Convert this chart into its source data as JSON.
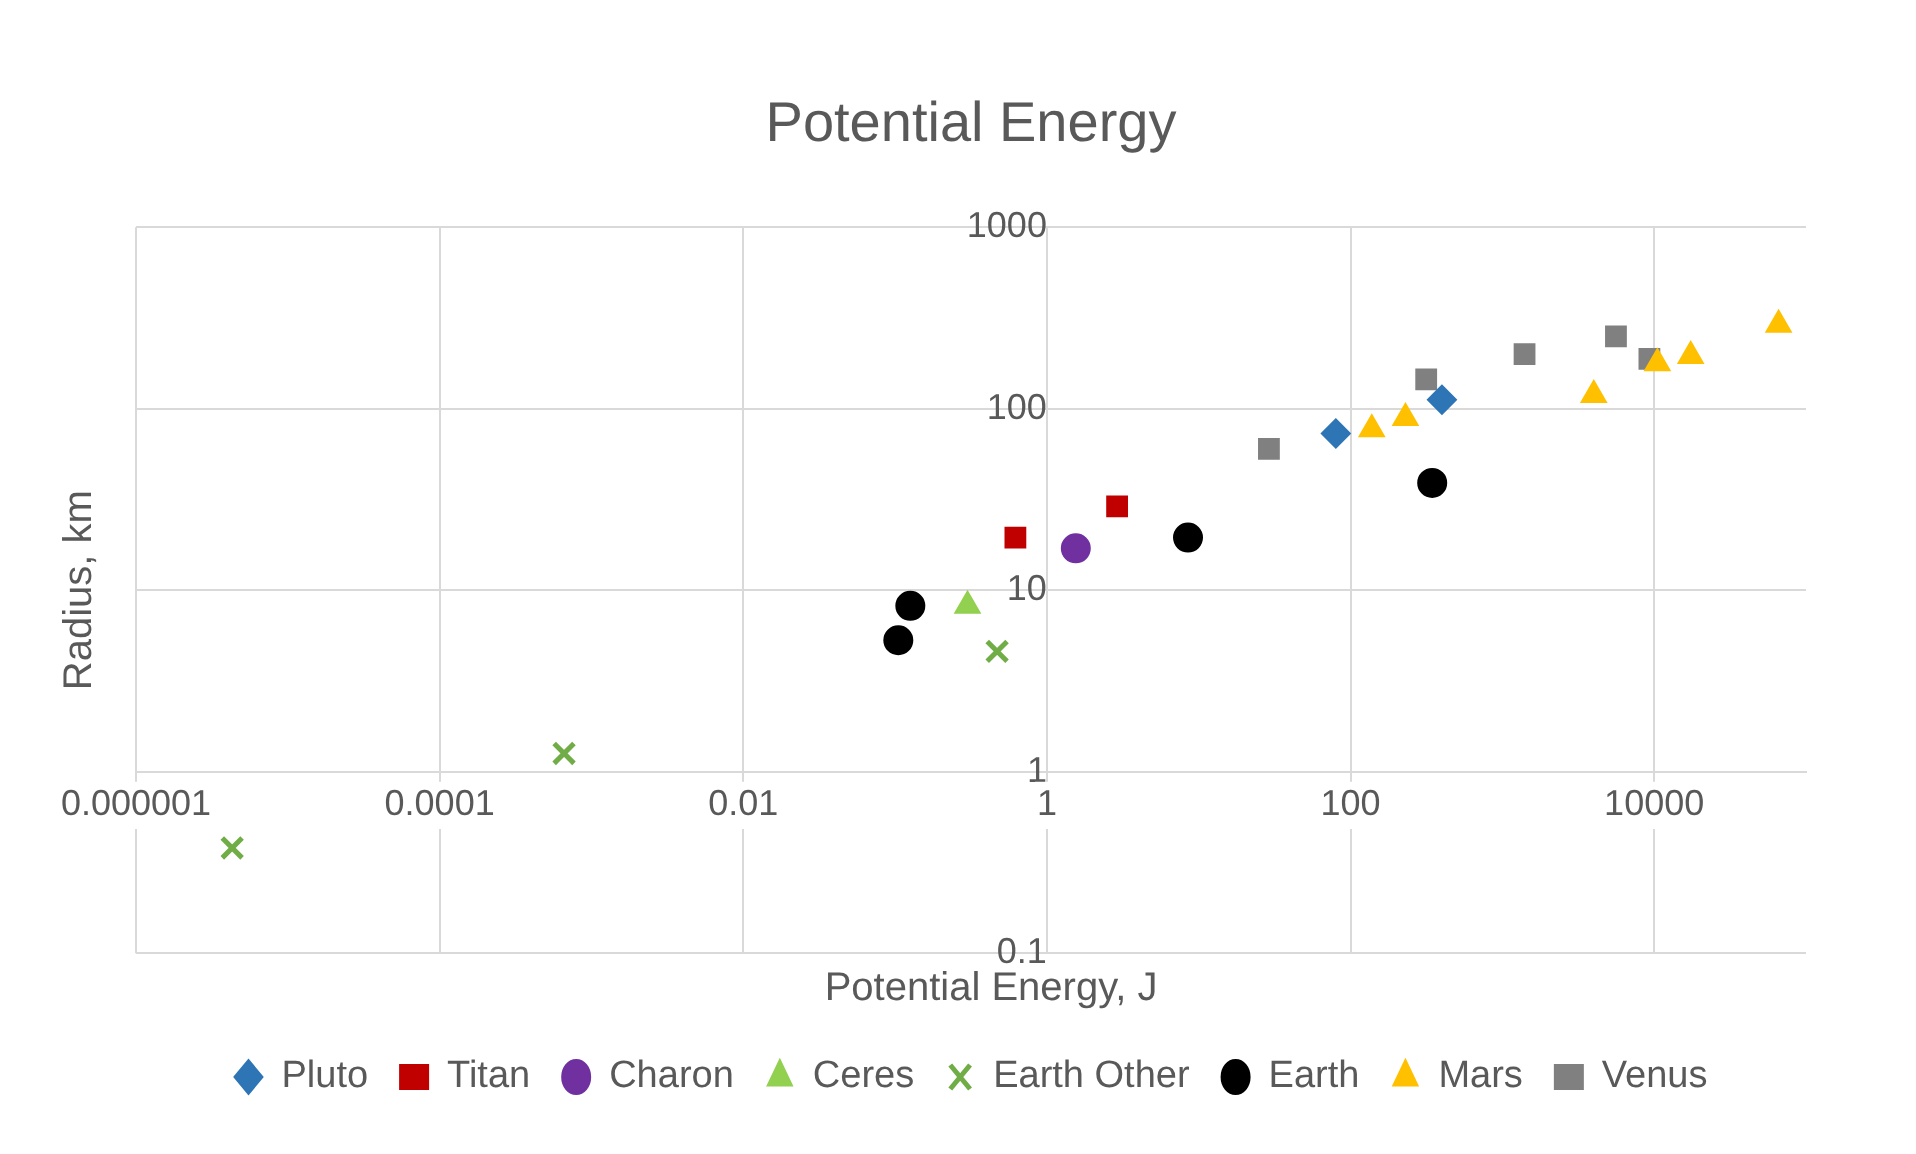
{
  "chart_data": {
    "type": "scatter",
    "title": "Potential Energy",
    "xlabel": "Potential Energy, J",
    "ylabel": "Radius, km",
    "log": "xy",
    "grid": true,
    "legend": "bottom",
    "xlim": [
      1e-06,
      100000
    ],
    "xticks": [
      {
        "value": 1e-06,
        "label": "0.000001"
      },
      0.0001,
      0.01,
      1,
      100,
      10000
    ],
    "ylim": [
      0.1,
      1000
    ],
    "yticks": [
      0.1,
      1,
      10,
      100,
      1000
    ],
    "series": [
      {
        "name": "Pluto",
        "color": "#2e75b6",
        "marker": "diamond",
        "x": [
          80,
          400
        ],
        "values": [
          73,
          112
        ]
      },
      {
        "name": "Titan",
        "color": "#c00000",
        "marker": "square",
        "x": [
          0.62,
          2.9
        ],
        "values": [
          19.5,
          29
        ]
      },
      {
        "name": "Charon",
        "color": "#7030a0",
        "marker": "circle",
        "x": [
          1.55
        ],
        "values": [
          17
        ]
      },
      {
        "name": "Ceres",
        "color": "#92d050",
        "marker": "triangle",
        "x": [
          0.3
        ],
        "values": [
          8.2
        ]
      },
      {
        "name": "Earth Other",
        "color": "#70ad47",
        "marker": "cross",
        "x": [
          4.3e-06,
          0.00066,
          0.47
        ],
        "values": [
          0.38,
          1.26,
          4.6
        ]
      },
      {
        "name": "Earth",
        "color": "#000000",
        "marker": "circle",
        "x": [
          0.105,
          0.126,
          8.5,
          345
        ],
        "values": [
          5.3,
          8.2,
          19.5,
          39
        ]
      },
      {
        "name": "Mars",
        "color": "#ffc000",
        "marker": "triangle",
        "x": [
          138,
          230,
          4000,
          10500,
          17400,
          66000
        ],
        "values": [
          77,
          89,
          119,
          178,
          195,
          290
        ]
      },
      {
        "name": "Venus",
        "color": "#808080",
        "marker": "square",
        "x": [
          29,
          315,
          1400,
          5600,
          9300
        ],
        "values": [
          60,
          145,
          200,
          250,
          188
        ]
      }
    ]
  }
}
